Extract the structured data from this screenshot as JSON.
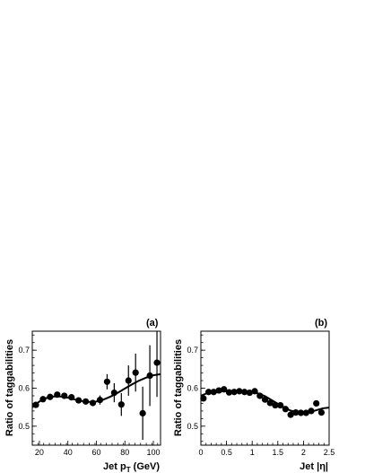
{
  "chart_data": [
    {
      "type": "scatter",
      "panel_label": "(a)",
      "xlabel_main": "Jet p",
      "xlabel_sub": "T",
      "xlabel_unit": " (GeV)",
      "ylabel": "Ratio of taggabilities",
      "xlim": [
        15,
        105
      ],
      "ylim": [
        0.45,
        0.75
      ],
      "xticks": [
        20,
        40,
        60,
        80,
        100
      ],
      "xtick_labels": [
        "20",
        "40",
        "60",
        "80",
        "100"
      ],
      "yticks": [
        0.5,
        0.6,
        0.7
      ],
      "ytick_labels": [
        "0.5",
        "0.6",
        "0.7"
      ],
      "points": [
        {
          "x": 17.5,
          "y": 0.556,
          "err": 0.004
        },
        {
          "x": 22.5,
          "y": 0.571,
          "err": 0.004
        },
        {
          "x": 27.5,
          "y": 0.577,
          "err": 0.004
        },
        {
          "x": 32.5,
          "y": 0.583,
          "err": 0.004
        },
        {
          "x": 37.5,
          "y": 0.58,
          "err": 0.004
        },
        {
          "x": 42.5,
          "y": 0.576,
          "err": 0.005
        },
        {
          "x": 47.5,
          "y": 0.568,
          "err": 0.005
        },
        {
          "x": 52.5,
          "y": 0.565,
          "err": 0.006
        },
        {
          "x": 57.5,
          "y": 0.561,
          "err": 0.008
        },
        {
          "x": 62.5,
          "y": 0.569,
          "err": 0.012
        },
        {
          "x": 67.5,
          "y": 0.617,
          "err": 0.02
        },
        {
          "x": 72.5,
          "y": 0.588,
          "err": 0.025
        },
        {
          "x": 77.5,
          "y": 0.557,
          "err": 0.03
        },
        {
          "x": 82.5,
          "y": 0.62,
          "err": 0.04
        },
        {
          "x": 87.5,
          "y": 0.641,
          "err": 0.05
        },
        {
          "x": 92.5,
          "y": 0.534,
          "err": 0.07
        },
        {
          "x": 97.5,
          "y": 0.633,
          "err": 0.08
        },
        {
          "x": 102.5,
          "y": 0.667,
          "err": 0.09
        }
      ],
      "fit": {
        "x": [
          15,
          20,
          25,
          30,
          35,
          40,
          45,
          50,
          55,
          60,
          65,
          70,
          75,
          80,
          85,
          90,
          95,
          100,
          105
        ],
        "y": [
          0.55,
          0.565,
          0.574,
          0.578,
          0.578,
          0.575,
          0.57,
          0.566,
          0.564,
          0.565,
          0.57,
          0.578,
          0.588,
          0.599,
          0.61,
          0.62,
          0.628,
          0.634,
          0.637
        ]
      }
    },
    {
      "type": "scatter",
      "panel_label": "(b)",
      "xlabel_main": "Jet |η|",
      "ylabel": "Ratio of taggabilities",
      "xlim": [
        0,
        2.5
      ],
      "ylim": [
        0.45,
        0.75
      ],
      "xticks": [
        0,
        0.5,
        1,
        1.5,
        2,
        2.5
      ],
      "xtick_labels": [
        "0",
        "0.5",
        "1",
        "1.5",
        "2",
        "2.5"
      ],
      "yticks": [
        0.5,
        0.6,
        0.7
      ],
      "ytick_labels": [
        "0.5",
        "0.6",
        "0.7"
      ],
      "points": [
        {
          "x": 0.05,
          "y": 0.573,
          "err": 0.004
        },
        {
          "x": 0.15,
          "y": 0.59,
          "err": 0.004
        },
        {
          "x": 0.25,
          "y": 0.59,
          "err": 0.004
        },
        {
          "x": 0.35,
          "y": 0.594,
          "err": 0.004
        },
        {
          "x": 0.45,
          "y": 0.597,
          "err": 0.004
        },
        {
          "x": 0.55,
          "y": 0.589,
          "err": 0.004
        },
        {
          "x": 0.65,
          "y": 0.59,
          "err": 0.004
        },
        {
          "x": 0.75,
          "y": 0.592,
          "err": 0.004
        },
        {
          "x": 0.85,
          "y": 0.59,
          "err": 0.004
        },
        {
          "x": 0.95,
          "y": 0.588,
          "err": 0.004
        },
        {
          "x": 1.05,
          "y": 0.592,
          "err": 0.004
        },
        {
          "x": 1.15,
          "y": 0.58,
          "err": 0.004
        },
        {
          "x": 1.25,
          "y": 0.57,
          "err": 0.004
        },
        {
          "x": 1.35,
          "y": 0.561,
          "err": 0.004
        },
        {
          "x": 1.45,
          "y": 0.555,
          "err": 0.004
        },
        {
          "x": 1.55,
          "y": 0.555,
          "err": 0.004
        },
        {
          "x": 1.65,
          "y": 0.545,
          "err": 0.004
        },
        {
          "x": 1.75,
          "y": 0.53,
          "err": 0.004
        },
        {
          "x": 1.85,
          "y": 0.536,
          "err": 0.004
        },
        {
          "x": 1.95,
          "y": 0.535,
          "err": 0.004
        },
        {
          "x": 2.05,
          "y": 0.535,
          "err": 0.004
        },
        {
          "x": 2.15,
          "y": 0.54,
          "err": 0.004
        },
        {
          "x": 2.25,
          "y": 0.56,
          "err": 0.005
        },
        {
          "x": 2.35,
          "y": 0.536,
          "err": 0.005
        }
      ],
      "fit": {
        "x": [
          0,
          0.125,
          0.25,
          0.375,
          0.5,
          0.625,
          0.75,
          0.875,
          1.0,
          1.125,
          1.25,
          1.375,
          1.5,
          1.625,
          1.75,
          1.875,
          2.0,
          2.125,
          2.25,
          2.375,
          2.5
        ],
        "y": [
          0.58,
          0.587,
          0.59,
          0.592,
          0.593,
          0.593,
          0.593,
          0.592,
          0.59,
          0.586,
          0.579,
          0.569,
          0.559,
          0.549,
          0.541,
          0.536,
          0.535,
          0.537,
          0.542,
          0.547,
          0.549
        ]
      }
    }
  ]
}
